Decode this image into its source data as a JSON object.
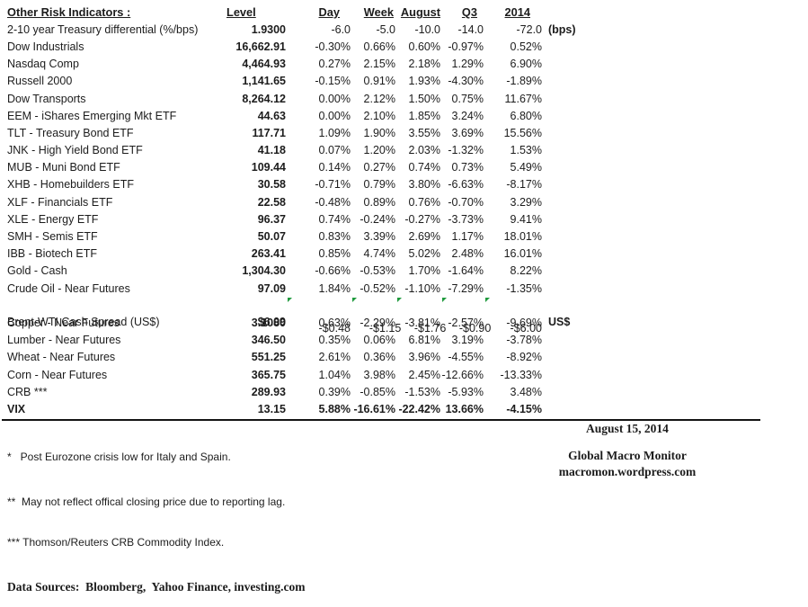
{
  "table": {
    "title": "Other Risk Indicators :",
    "headers": {
      "level": "Level",
      "day": "Day",
      "week": "Week",
      "august": "August",
      "q3": "Q3",
      "y2014": "2014"
    },
    "rows": [
      {
        "name": "2-10 year Treasury differential (%/bps)",
        "level": "1.9300",
        "day": "-6.0",
        "week": "-5.0",
        "august": "-10.0",
        "q3": "-14.0",
        "y2014": "-72.0",
        "suffix": "(bps)"
      },
      {
        "name": "Dow Industrials",
        "level": "16,662.91",
        "day": "-0.30%",
        "week": "0.66%",
        "august": "0.60%",
        "q3": "-0.97%",
        "y2014": "0.52%"
      },
      {
        "name": "Nasdaq Comp",
        "level": "4,464.93",
        "day": "0.27%",
        "week": "2.15%",
        "august": "2.18%",
        "q3": "1.29%",
        "y2014": "6.90%"
      },
      {
        "name": "Russell 2000",
        "level": "1,141.65",
        "day": "-0.15%",
        "week": "0.91%",
        "august": "1.93%",
        "q3": "-4.30%",
        "y2014": "-1.89%"
      },
      {
        "name": "Dow Transports",
        "level": "8,264.12",
        "day": "0.00%",
        "week": "2.12%",
        "august": "1.50%",
        "q3": "0.75%",
        "y2014": "11.67%"
      },
      {
        "name": "EEM - iShares Emerging Mkt ETF",
        "level": "44.63",
        "day": "0.00%",
        "week": "2.10%",
        "august": "1.85%",
        "q3": "3.24%",
        "y2014": "6.80%"
      },
      {
        "name": "TLT - Treasury Bond ETF",
        "level": "117.71",
        "day": "1.09%",
        "week": "1.90%",
        "august": "3.55%",
        "q3": "3.69%",
        "y2014": "15.56%"
      },
      {
        "name": "JNK - High Yield Bond ETF",
        "level": "41.18",
        "day": "0.07%",
        "week": "1.20%",
        "august": "2.03%",
        "q3": "-1.32%",
        "y2014": "1.53%"
      },
      {
        "name": "MUB - Muni Bond ETF",
        "level": "109.44",
        "day": "0.14%",
        "week": "0.27%",
        "august": "0.74%",
        "q3": "0.73%",
        "y2014": "5.49%"
      },
      {
        "name": "XHB - Homebuilders ETF",
        "level": "30.58",
        "day": "-0.71%",
        "week": "0.79%",
        "august": "3.80%",
        "q3": "-6.63%",
        "y2014": "-8.17%"
      },
      {
        "name": "XLF - Financials ETF",
        "level": "22.58",
        "day": "-0.48%",
        "week": "0.89%",
        "august": "0.76%",
        "q3": "-0.70%",
        "y2014": "3.29%"
      },
      {
        "name": "XLE - Energy ETF",
        "level": "96.37",
        "day": "0.74%",
        "week": "-0.24%",
        "august": "-0.27%",
        "q3": "-3.73%",
        "y2014": "9.41%"
      },
      {
        "name": "SMH - Semis ETF",
        "level": "50.07",
        "day": "0.83%",
        "week": "3.39%",
        "august": "2.69%",
        "q3": "1.17%",
        "y2014": "18.01%"
      },
      {
        "name": "IBB - Biotech ETF",
        "level": "263.41",
        "day": "0.85%",
        "week": "4.74%",
        "august": "5.02%",
        "q3": "2.48%",
        "y2014": "16.01%"
      },
      {
        "name": "Gold - Cash",
        "level": "1,304.30",
        "day": "-0.66%",
        "week": "-0.53%",
        "august": "1.70%",
        "q3": "-1.64%",
        "y2014": "8.22%"
      },
      {
        "name": "Crude Oil - Near Futures",
        "level": "97.09",
        "day": "1.84%",
        "week": "-0.52%",
        "august": "-1.10%",
        "q3": "-7.29%",
        "y2014": "-1.35%"
      },
      {
        "name": "Brent-WTI Cash Spread (US$)",
        "level": "$6.09",
        "day": "-$0.48",
        "week": "-$1.15",
        "august": "-$1.76",
        "q3": "-$0.90",
        "y2014": "-$6.00",
        "suffix": "US$"
      },
      {
        "name": "Copper - Near Futures",
        "level": "3.1080",
        "day": "0.63%",
        "week": "-2.29%",
        "august": "-3.81%",
        "q3": "-2.57%",
        "y2014": "-9.69%"
      },
      {
        "name": "Lumber - Near Futures",
        "level": "346.50",
        "day": "0.35%",
        "week": "0.06%",
        "august": "6.81%",
        "q3": "3.19%",
        "y2014": "-3.78%"
      },
      {
        "name": "Wheat - Near Futures",
        "level": "551.25",
        "day": "2.61%",
        "week": "0.36%",
        "august": "3.96%",
        "q3": "-4.55%",
        "y2014": "-8.92%"
      },
      {
        "name": "Corn - Near Futures",
        "level": "365.75",
        "day": "1.04%",
        "week": "3.98%",
        "august": "2.45%",
        "q3": "-12.66%",
        "y2014": "-13.33%"
      },
      {
        "name": "CRB ***",
        "level": "289.93",
        "day": "0.39%",
        "week": "-0.85%",
        "august": "-1.53%",
        "q3": "-5.93%",
        "y2014": "3.48%"
      },
      {
        "name": "VIX",
        "level": "13.15",
        "day": "5.88%",
        "week": "-16.61%",
        "august": "-22.42%",
        "q3": "13.66%",
        "y2014": "-4.15%"
      }
    ]
  },
  "footnotes": {
    "fn1": "*   Post Eurozone crisis low for Italy and Spain.",
    "fn2": "**  May not reflect offical closing price due to reporting lag.",
    "fn3": "*** Thomson/Reuters CRB Commodity Index.",
    "data_sources": "Data Sources:  Bloomberg,  Yahoo Finance, investing.com"
  },
  "footer_right": {
    "date": "August 15, 2014",
    "publication": "Global Macro Monitor",
    "url": "macromon.wordpress.com"
  },
  "colors": {
    "text": "#1c1c1c",
    "flag_green": "#1f9a3d",
    "rule": "#141414"
  }
}
